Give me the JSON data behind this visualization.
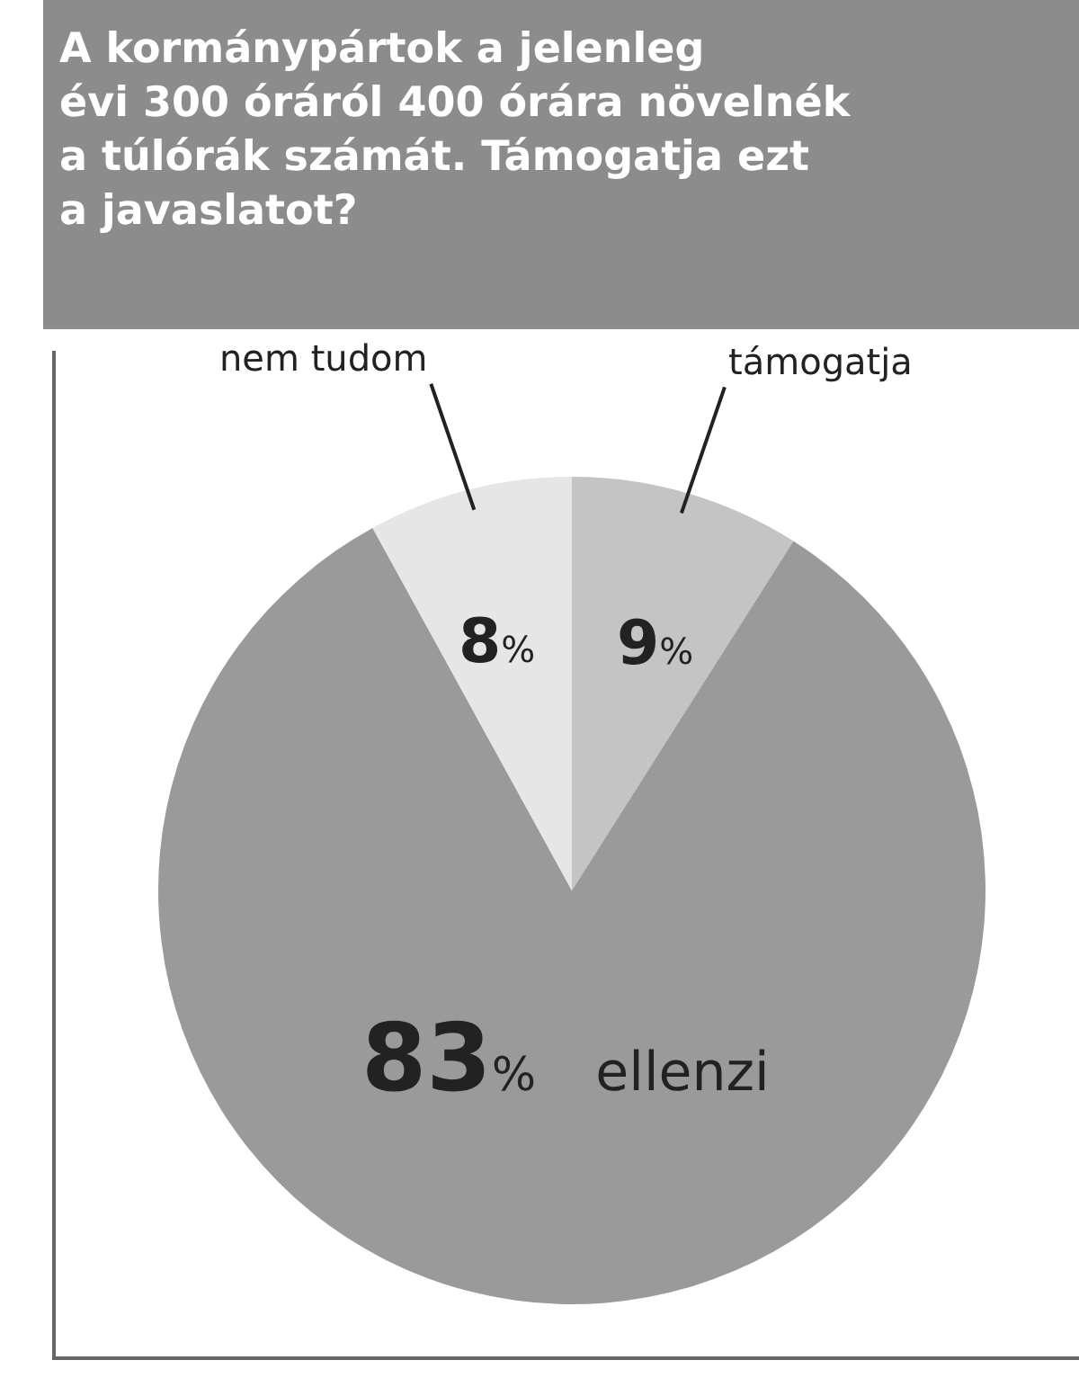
{
  "chart_data": {
    "type": "pie",
    "title": "A kormánypártok a jelenleg\névi 300 óráról 400 órára növelnék\na túlórák számát. Támogatja ezt\na javaslatot?",
    "categories": [
      "támogatja",
      "ellenzi",
      "nem tudom"
    ],
    "values": [
      9,
      83,
      8
    ],
    "colors": [
      "#c4c4c4",
      "#9a9a9a",
      "#e6e6e6"
    ],
    "value_labels": [
      "9%",
      "83%",
      "8%"
    ]
  }
}
